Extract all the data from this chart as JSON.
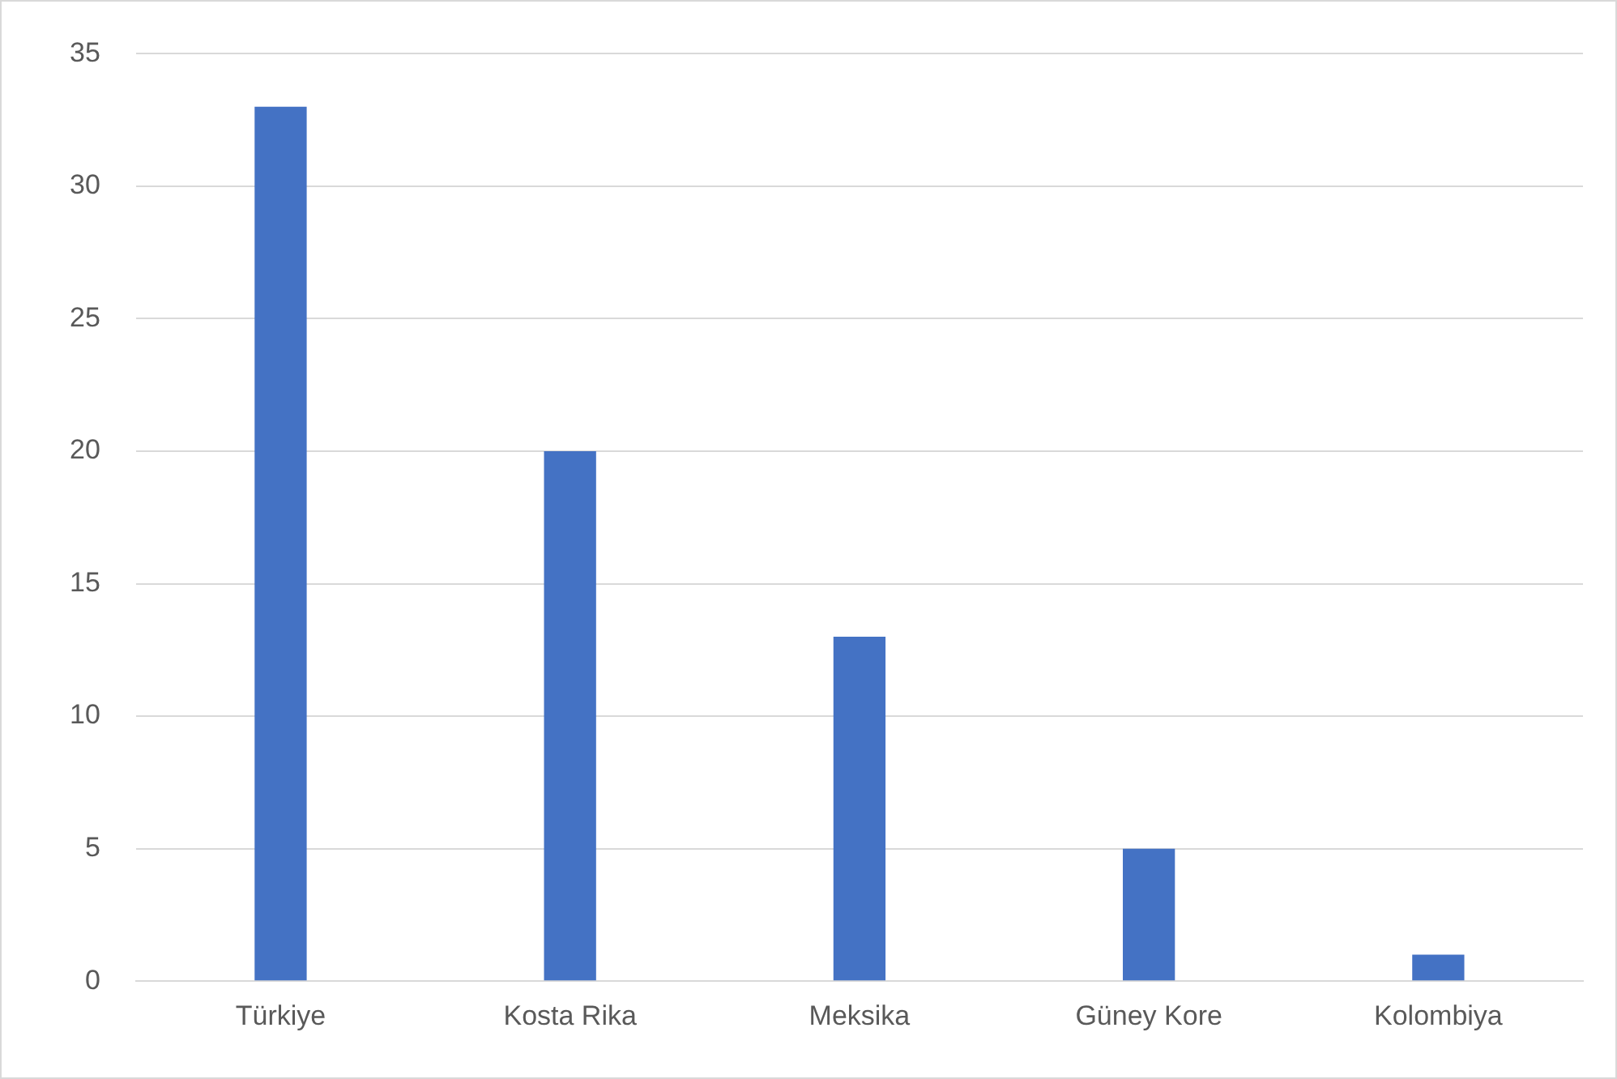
{
  "chart_data": {
    "type": "bar",
    "categories": [
      "Türkiye",
      "Kosta Rika",
      "Meksika",
      "Güney Kore",
      "Kolombiya"
    ],
    "values": [
      33,
      20,
      13,
      5,
      1
    ],
    "color": "#4472c4",
    "ylim": [
      0,
      35
    ],
    "yticks": [
      0,
      5,
      10,
      15,
      20,
      25,
      30,
      35
    ],
    "grid": "y",
    "legend": false
  }
}
